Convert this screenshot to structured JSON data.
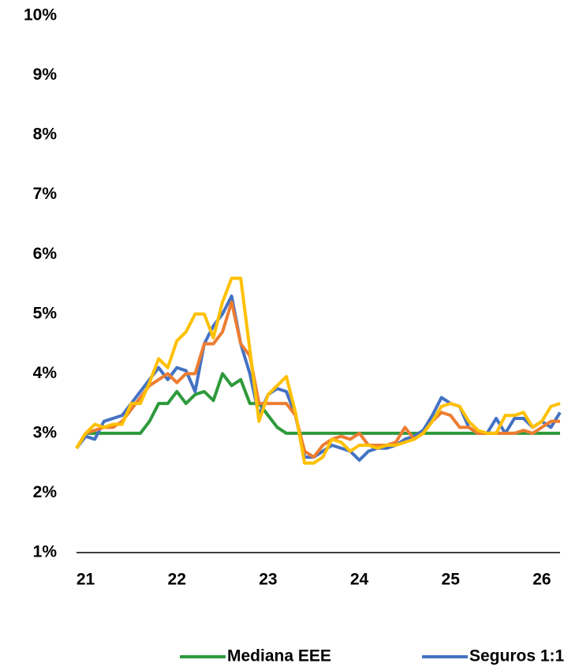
{
  "chart_data": {
    "type": "line",
    "x": [
      20.9,
      21.0,
      21.1,
      21.2,
      21.3,
      21.4,
      21.5,
      21.6,
      21.7,
      21.8,
      21.9,
      22.0,
      22.1,
      22.2,
      22.3,
      22.4,
      22.5,
      22.6,
      22.7,
      22.8,
      22.9,
      23.0,
      23.1,
      23.2,
      23.3,
      23.4,
      23.5,
      23.6,
      23.7,
      23.8,
      23.9,
      24.0,
      24.1,
      24.2,
      24.3,
      24.4,
      24.5,
      24.6,
      24.7,
      24.8,
      24.9,
      25.0,
      25.1,
      25.2,
      25.3,
      25.4,
      25.5,
      25.6,
      25.7,
      25.8,
      25.9,
      26.0,
      26.1,
      26.2
    ],
    "xlim": [
      20.9,
      26.2
    ],
    "xticks": [
      21,
      22,
      23,
      24,
      25,
      26
    ],
    "ylim": [
      1,
      10
    ],
    "yticks": [
      {
        "value": 1,
        "label": "1%"
      },
      {
        "value": 2,
        "label": "2%"
      },
      {
        "value": 3,
        "label": "3%"
      },
      {
        "value": 4,
        "label": "4%"
      },
      {
        "value": 5,
        "label": "5%"
      },
      {
        "value": 6,
        "label": "6%"
      },
      {
        "value": 7,
        "label": "7%"
      },
      {
        "value": 8,
        "label": "8%"
      },
      {
        "value": 9,
        "label": "9%"
      },
      {
        "value": 10,
        "label": "10%"
      }
    ],
    "grid": false,
    "series": [
      {
        "name": "Mediana EEE",
        "color": "#2e9a3c",
        "values": [
          2.75,
          3.0,
          3.0,
          3.0,
          3.0,
          3.0,
          3.0,
          3.0,
          3.2,
          3.5,
          3.5,
          3.7,
          3.5,
          3.65,
          3.7,
          3.55,
          4.0,
          3.8,
          3.9,
          3.5,
          3.5,
          3.3,
          3.1,
          3.0,
          3.0,
          3.0,
          3.0,
          3.0,
          3.0,
          3.0,
          3.0,
          3.0,
          3.0,
          3.0,
          3.0,
          3.0,
          3.0,
          3.0,
          3.0,
          3.0,
          3.0,
          3.0,
          3.0,
          3.0,
          3.0,
          3.0,
          3.0,
          3.0,
          3.0,
          3.0,
          3.0,
          3.0,
          3.0,
          3.0
        ]
      },
      {
        "name": "Seguros 1:1",
        "color": "#4472c4",
        "values": [
          2.75,
          2.95,
          2.9,
          3.2,
          3.25,
          3.3,
          3.5,
          3.7,
          3.9,
          4.1,
          3.9,
          4.1,
          4.05,
          3.7,
          4.5,
          4.8,
          5.0,
          5.3,
          4.5,
          4.0,
          3.3,
          3.65,
          3.75,
          3.7,
          3.3,
          2.6,
          2.6,
          2.7,
          2.8,
          2.75,
          2.7,
          2.55,
          2.7,
          2.75,
          2.75,
          2.8,
          2.9,
          2.95,
          3.05,
          3.3,
          3.6,
          3.5,
          3.45,
          3.1,
          3.0,
          3.0,
          3.25,
          3.0,
          3.25,
          3.25,
          3.1,
          3.2,
          3.1,
          3.35
        ]
      },
      {
        "color": "#ed7d31",
        "values": [
          2.75,
          3.0,
          3.05,
          3.1,
          3.1,
          3.2,
          3.4,
          3.6,
          3.8,
          3.9,
          4.0,
          3.85,
          4.0,
          4.0,
          4.5,
          4.5,
          4.7,
          5.2,
          4.5,
          4.3,
          3.5,
          3.5,
          3.5,
          3.5,
          3.3,
          2.7,
          2.6,
          2.8,
          2.9,
          2.95,
          2.9,
          3.0,
          2.8,
          2.8,
          2.8,
          2.85,
          3.1,
          2.9,
          3.0,
          3.2,
          3.35,
          3.3,
          3.1,
          3.1,
          3.0,
          3.0,
          3.0,
          3.0,
          3.0,
          3.05,
          3.0,
          3.1,
          3.2,
          3.2
        ]
      },
      {
        "color": "#ffc000",
        "values": [
          2.75,
          3.0,
          3.15,
          3.1,
          3.15,
          3.15,
          3.5,
          3.5,
          3.85,
          4.25,
          4.1,
          4.55,
          4.7,
          5.0,
          5.0,
          4.6,
          5.2,
          5.6,
          5.6,
          4.4,
          3.2,
          3.65,
          3.8,
          3.95,
          3.35,
          2.5,
          2.5,
          2.6,
          2.9,
          2.85,
          2.7,
          2.8,
          2.8,
          2.75,
          2.8,
          2.8,
          2.85,
          2.9,
          3.0,
          3.2,
          3.45,
          3.5,
          3.45,
          3.2,
          3.05,
          3.0,
          3.0,
          3.3,
          3.3,
          3.35,
          3.1,
          3.2,
          3.45,
          3.5
        ]
      }
    ]
  }
}
